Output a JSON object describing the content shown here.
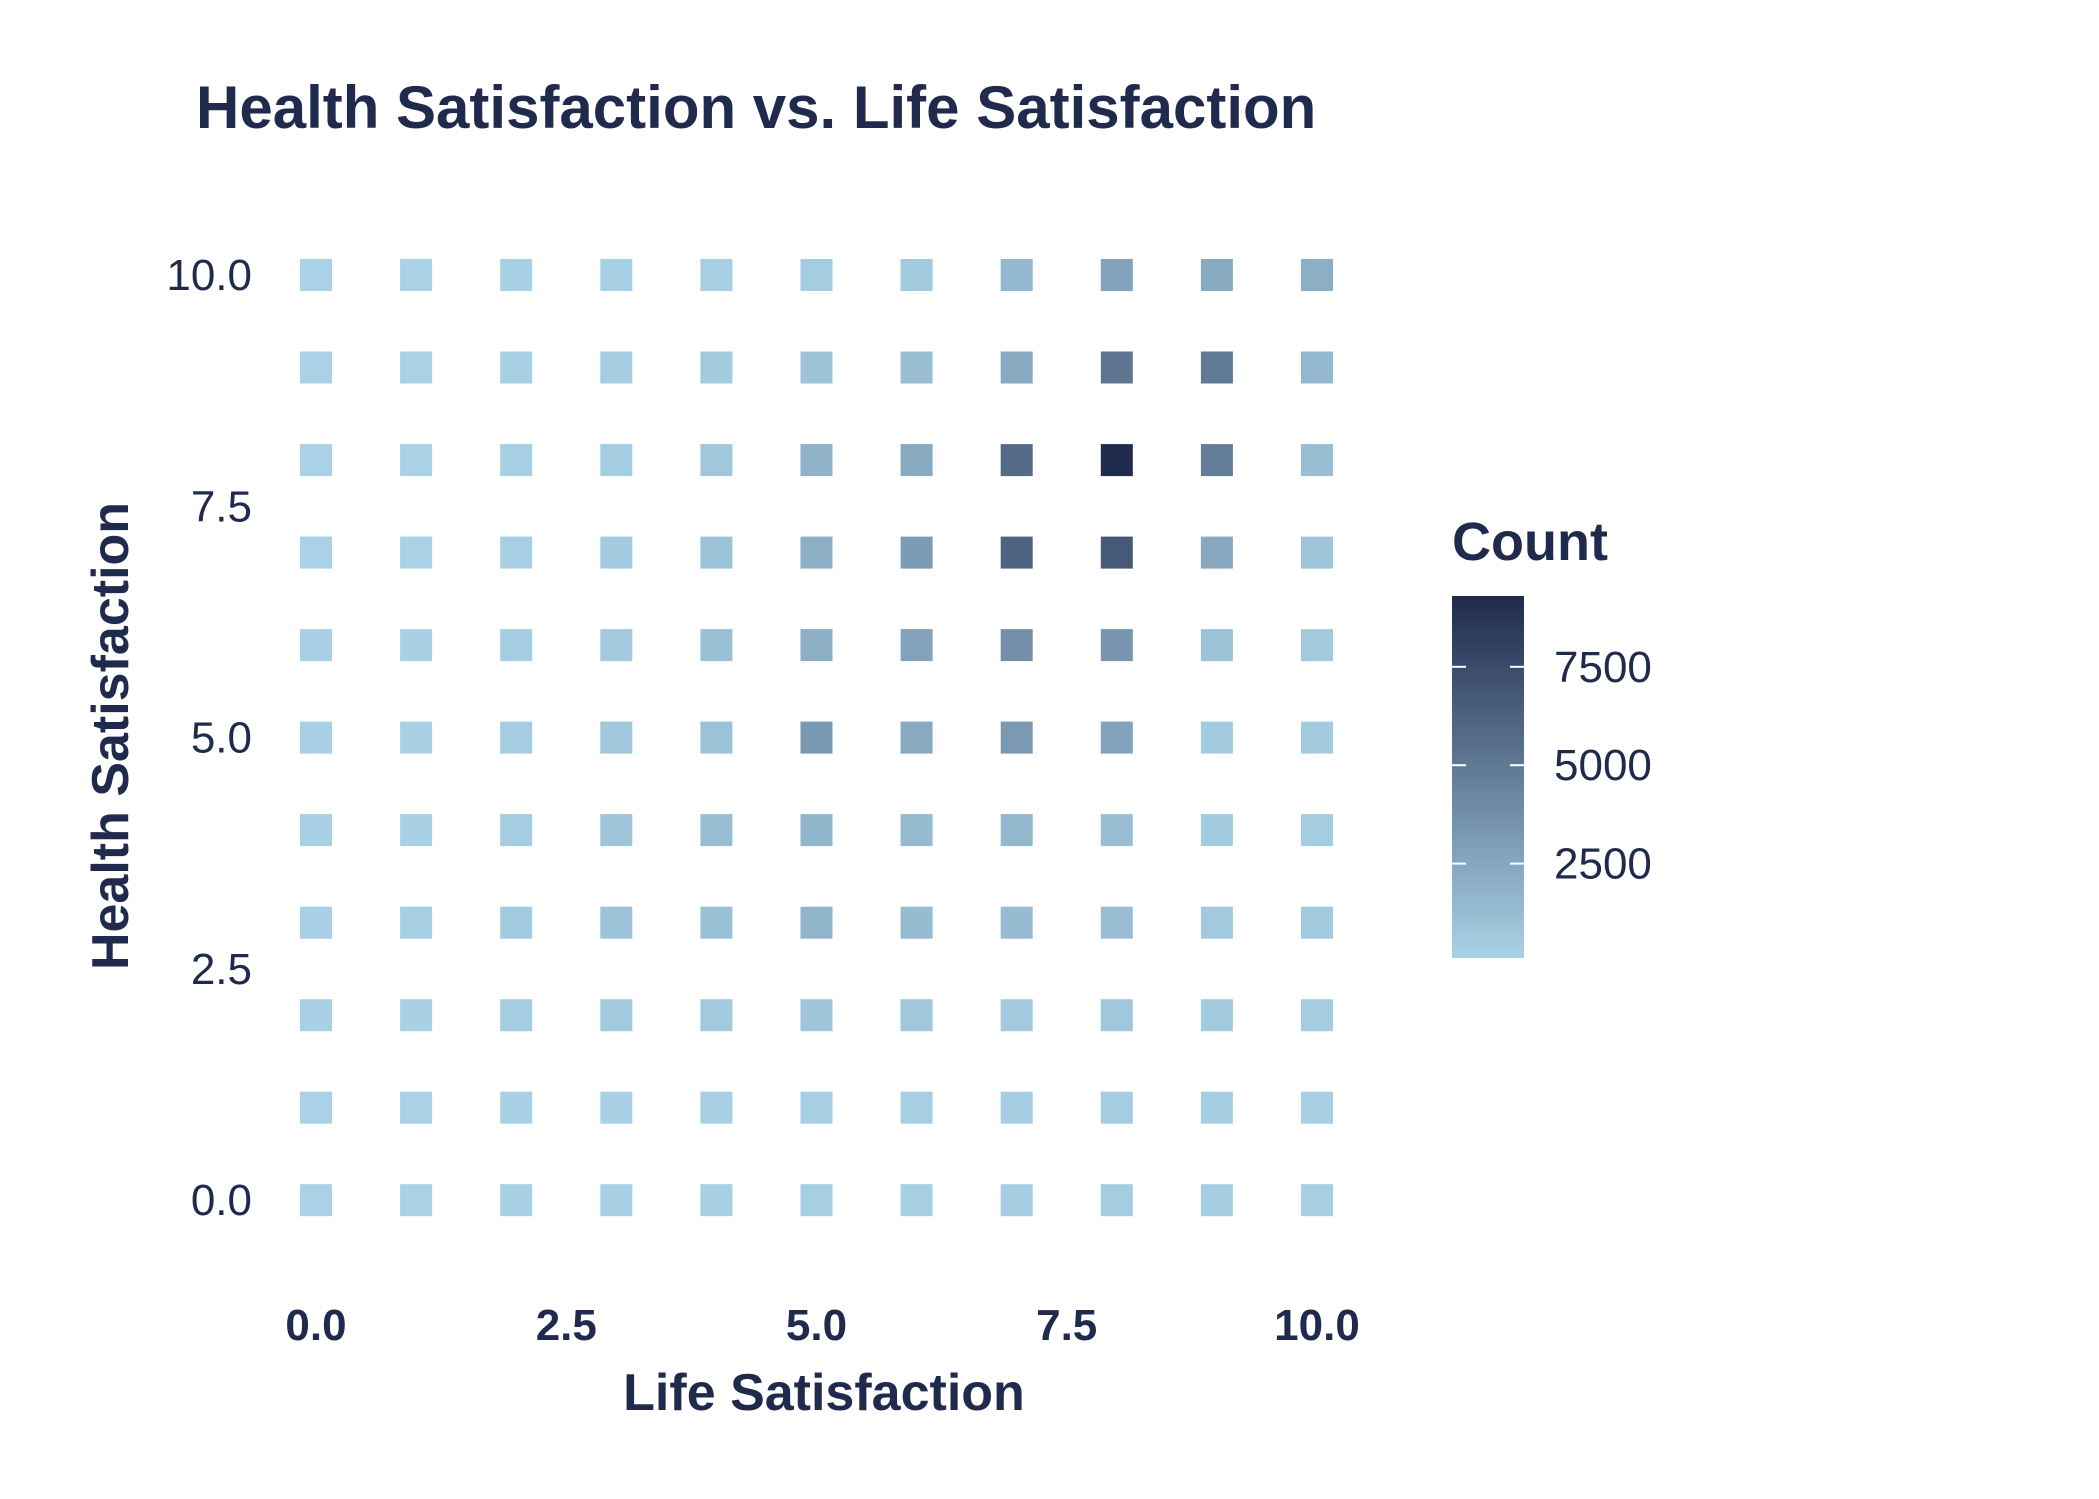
{
  "chart_data": {
    "type": "heatmap",
    "title": "Health Satisfaction vs. Life Satisfaction",
    "xlabel": "Life Satisfaction",
    "ylabel": "Health Satisfaction",
    "xlim": [
      -0.2,
      10.5
    ],
    "ylim": [
      -0.3,
      10.4
    ],
    "x_ticks": [
      "0.0",
      "2.5",
      "5.0",
      "7.5",
      "10.0"
    ],
    "y_ticks": [
      "0.0",
      "2.5",
      "5.0",
      "7.5",
      "10.0"
    ],
    "x": [
      0,
      1,
      2,
      3,
      4,
      5,
      6,
      7,
      8,
      9,
      10
    ],
    "y": [
      0,
      1,
      2,
      3,
      4,
      5,
      6,
      7,
      8,
      9,
      10
    ],
    "values": [
      [
        120,
        100,
        150,
        180,
        200,
        250,
        250,
        300,
        350,
        300,
        250
      ],
      [
        120,
        100,
        150,
        180,
        200,
        250,
        250,
        300,
        350,
        300,
        250
      ],
      [
        150,
        150,
        300,
        500,
        600,
        800,
        700,
        600,
        700,
        500,
        400
      ],
      [
        200,
        250,
        500,
        900,
        1100,
        1700,
        1300,
        1300,
        1200,
        600,
        500
      ],
      [
        150,
        150,
        400,
        800,
        1200,
        1700,
        1400,
        1600,
        1200,
        500,
        400
      ],
      [
        150,
        150,
        400,
        700,
        1000,
        3300,
        2300,
        3200,
        2700,
        500,
        500
      ],
      [
        150,
        150,
        300,
        600,
        1100,
        2000,
        2700,
        3800,
        3400,
        1000,
        600
      ],
      [
        120,
        120,
        250,
        500,
        900,
        2000,
        3100,
        6200,
        6700,
        2400,
        800
      ],
      [
        120,
        120,
        250,
        400,
        700,
        1800,
        2300,
        5800,
        9300,
        4800,
        1200
      ],
      [
        120,
        120,
        200,
        300,
        500,
        900,
        1200,
        2300,
        5200,
        5000,
        1500
      ],
      [
        120,
        120,
        150,
        200,
        250,
        350,
        500,
        1500,
        2700,
        2300,
        2000
      ]
    ],
    "colorbar": {
      "title": "Count",
      "min": 100,
      "max": 9300,
      "ticks": [
        2500,
        5000,
        7500
      ],
      "low_color": "#a9d2e6",
      "high_color": "#1f2a4d"
    },
    "grid": false,
    "legend_position": "right"
  }
}
